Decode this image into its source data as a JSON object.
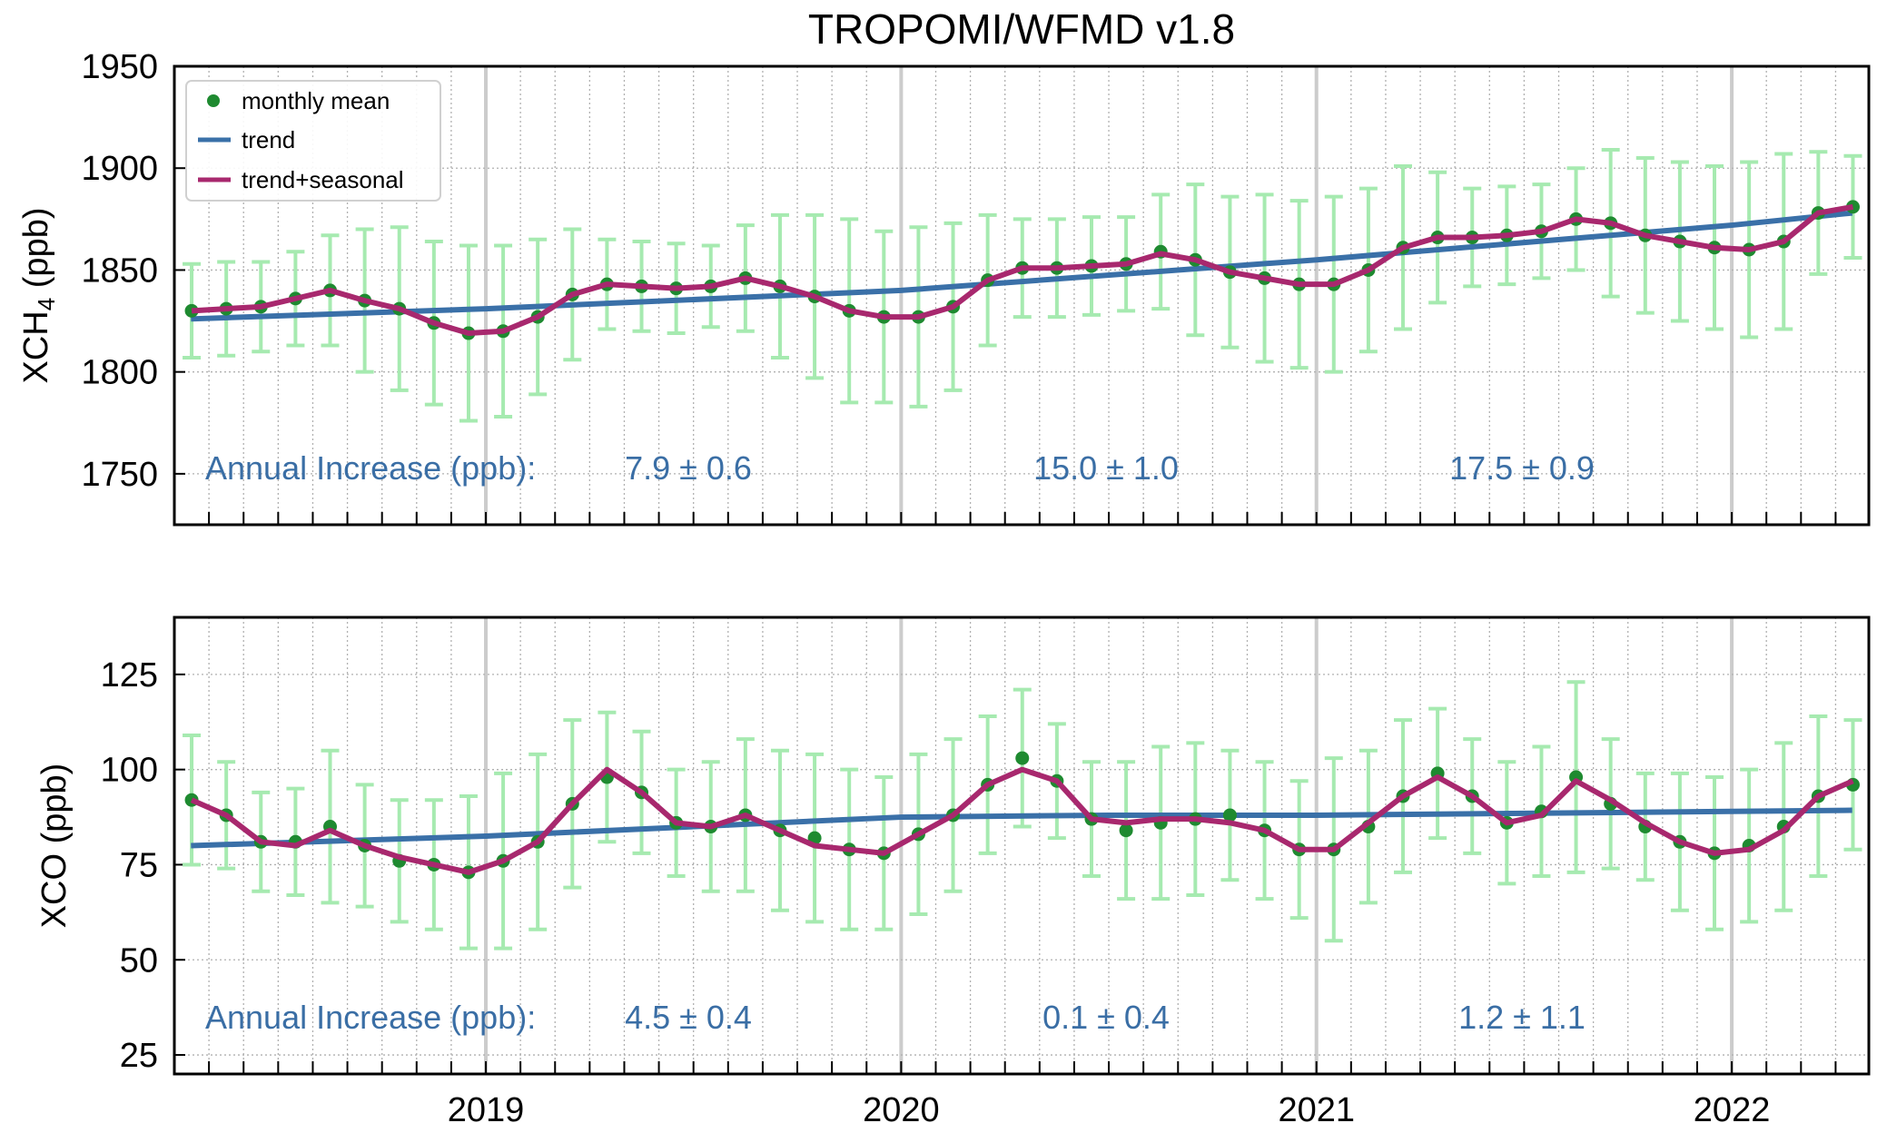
{
  "title": "TROPOMI/WFMD v1.8",
  "legend": {
    "placement": "top-left",
    "items": [
      "monthly mean",
      "trend",
      "trend+seasonal"
    ]
  },
  "colors": {
    "monthly_mean": "#1e8a30",
    "error_bar": "#a6eab0",
    "trend": "#3a70a8",
    "trend_seasonal": "#a8286e",
    "annotation": "#3a6ea5",
    "year_line": "#cccccc"
  },
  "chart_data": [
    {
      "type": "line",
      "ylabel": "XCH",
      "ylabel_sub": "4",
      "ylabel_unit": "(ppb)",
      "ylim": [
        1725,
        1950
      ],
      "xlim": [
        2018.25,
        2022.33
      ],
      "yticks": [
        1750,
        1800,
        1850,
        1900,
        1950
      ],
      "grid": true,
      "start_month": "2018-04",
      "monthly_mean": [
        1830,
        1831,
        1832,
        1836,
        1840,
        1835,
        1831,
        1824,
        1819,
        1820,
        1827,
        1838,
        1843,
        1842,
        1841,
        1842,
        1846,
        1842,
        1837,
        1830,
        1827,
        1827,
        1832,
        1845,
        1851,
        1851,
        1852,
        1853,
        1859,
        1855,
        1849,
        1846,
        1843,
        1843,
        1850,
        1861,
        1866,
        1866,
        1867,
        1869,
        1875,
        1873,
        1867,
        1864,
        1861,
        1860,
        1864,
        1878,
        1881
      ],
      "error": [
        23,
        23,
        22,
        23,
        27,
        35,
        40,
        40,
        43,
        42,
        38,
        32,
        22,
        22,
        22,
        20,
        26,
        35,
        40,
        45,
        42,
        44,
        41,
        32,
        24,
        24,
        24,
        23,
        28,
        37,
        37,
        41,
        41,
        43,
        40,
        40,
        32,
        24,
        24,
        23,
        25,
        36,
        38,
        39,
        40,
        43,
        43,
        30,
        25
      ],
      "trend_seasonal": [
        1830,
        1831,
        1832,
        1836,
        1840,
        1835,
        1831,
        1824,
        1819,
        1820,
        1827,
        1838,
        1843,
        1842,
        1841,
        1842,
        1846,
        1842,
        1837,
        1830,
        1827,
        1827,
        1832,
        1845,
        1851,
        1851,
        1852,
        1853,
        1858,
        1855,
        1849,
        1846,
        1843,
        1843,
        1850,
        1861,
        1866,
        1866,
        1867,
        1869,
        1875,
        1873,
        1867,
        1864,
        1861,
        1860,
        1864,
        1878,
        1881
      ],
      "trend": {
        "x": [
          2018.29,
          2019.0,
          2020.0,
          2021.0,
          2022.0,
          2022.29
        ],
        "y": [
          1826,
          1831,
          1840,
          1855,
          1872,
          1878
        ]
      },
      "annotation": {
        "label": "Annual Increase (ppb):",
        "values": [
          "7.9 ± 0.6",
          "15.0 ± 1.0",
          "17.5 ± 0.9"
        ]
      }
    },
    {
      "type": "line",
      "ylabel": "XCO (ppb)",
      "ylim": [
        20,
        140
      ],
      "xlim": [
        2018.25,
        2022.33
      ],
      "yticks": [
        25,
        50,
        75,
        100,
        125
      ],
      "xticks": [
        "2019",
        "2020",
        "2021",
        "2022"
      ],
      "grid": true,
      "start_month": "2018-04",
      "monthly_mean": [
        92,
        88,
        81,
        81,
        85,
        80,
        76,
        75,
        73,
        76,
        81,
        91,
        98,
        94,
        86,
        85,
        88,
        84,
        82,
        79,
        78,
        83,
        88,
        96,
        103,
        97,
        87,
        84,
        86,
        87,
        88,
        84,
        79,
        79,
        85,
        93,
        99,
        93,
        86,
        89,
        98,
        91,
        85,
        81,
        78,
        80,
        85,
        93,
        96
      ],
      "error": [
        17,
        14,
        13,
        14,
        20,
        16,
        16,
        17,
        20,
        23,
        23,
        22,
        17,
        16,
        14,
        17,
        20,
        21,
        22,
        21,
        20,
        21,
        20,
        18,
        18,
        15,
        15,
        18,
        20,
        20,
        17,
        18,
        18,
        24,
        20,
        20,
        17,
        15,
        16,
        17,
        25,
        17,
        14,
        18,
        20,
        20,
        22,
        21,
        17
      ],
      "trend_seasonal": [
        92,
        88,
        81,
        80,
        84,
        80,
        77,
        75,
        73,
        76,
        81,
        91,
        100,
        94,
        86,
        85,
        88,
        84,
        80,
        79,
        78,
        83,
        88,
        96,
        100,
        97,
        87,
        86,
        87,
        87,
        86,
        84,
        79,
        79,
        86,
        93,
        98,
        93,
        86,
        88,
        97,
        92,
        86,
        81,
        78,
        79,
        84,
        93,
        97
      ],
      "trend": {
        "x": [
          2018.29,
          2019.0,
          2020.0,
          2020.5,
          2021.0,
          2022.0,
          2022.29
        ],
        "y": [
          80,
          82.5,
          87.5,
          88,
          88,
          89,
          89.3
        ]
      },
      "annotation": {
        "label": "Annual Increase (ppb):",
        "values": [
          "4.5 ± 0.4",
          "0.1 ± 0.4",
          "1.2 ± 1.1"
        ]
      }
    }
  ]
}
